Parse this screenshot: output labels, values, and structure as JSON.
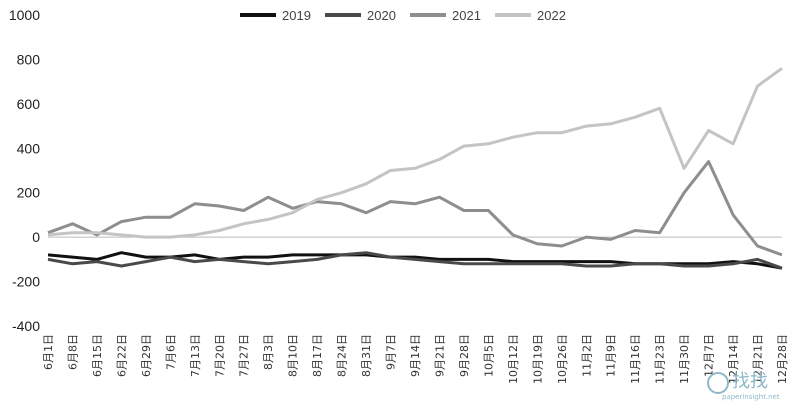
{
  "chart_data": {
    "type": "line",
    "ylim": [
      -400,
      1000
    ],
    "yticks": [
      -400,
      -200,
      0,
      200,
      400,
      600,
      800,
      1000
    ],
    "legend_position": "top-center",
    "grid": false,
    "x_labels": [
      "6月1日",
      "6月8日",
      "6月15日",
      "6月22日",
      "6月29日",
      "7月6日",
      "7月13日",
      "7月20日",
      "7月27日",
      "8月3日",
      "8月10日",
      "8月17日",
      "8月24日",
      "8月31日",
      "9月7日",
      "9月14日",
      "9月21日",
      "9月28日",
      "10月5日",
      "10月12日",
      "10月19日",
      "10月26日",
      "11月2日",
      "11月9日",
      "11月16日",
      "11月23日",
      "11月30日",
      "12月7日",
      "12月14日",
      "12月21日",
      "12月28日"
    ],
    "series": [
      {
        "name": "2019",
        "color": "#111111",
        "values": [
          -80,
          -90,
          -100,
          -70,
          -90,
          -90,
          -80,
          -100,
          -90,
          -90,
          -80,
          -80,
          -80,
          -80,
          -90,
          -90,
          -100,
          -100,
          -100,
          -110,
          -110,
          -110,
          -110,
          -110,
          -120,
          -120,
          -120,
          -120,
          -110,
          -120,
          -140
        ]
      },
      {
        "name": "2020",
        "color": "#4a4a4a",
        "values": [
          -100,
          -120,
          -110,
          -130,
          -110,
          -90,
          -110,
          -100,
          -110,
          -120,
          -110,
          -100,
          -80,
          -70,
          -90,
          -100,
          -110,
          -120,
          -120,
          -120,
          -120,
          -120,
          -130,
          -130,
          -120,
          -120,
          -130,
          -130,
          -120,
          -100,
          -140
        ]
      },
      {
        "name": "2021",
        "color": "#8e8e8e",
        "values": [
          20,
          60,
          10,
          70,
          90,
          90,
          150,
          140,
          120,
          180,
          130,
          160,
          150,
          110,
          160,
          150,
          180,
          120,
          120,
          10,
          -30,
          -40,
          0,
          -10,
          30,
          20,
          200,
          340,
          100,
          -40,
          -80
        ]
      },
      {
        "name": "2022",
        "color": "#c4c4c4",
        "values": [
          10,
          20,
          20,
          10,
          0,
          0,
          10,
          30,
          60,
          80,
          110,
          170,
          200,
          240,
          300,
          310,
          350,
          410,
          420,
          450,
          470,
          470,
          500,
          510,
          540,
          580,
          310,
          480,
          420,
          680,
          760
        ]
      }
    ]
  },
  "watermark": {
    "text": "找找",
    "url": "paperinsight.net"
  }
}
